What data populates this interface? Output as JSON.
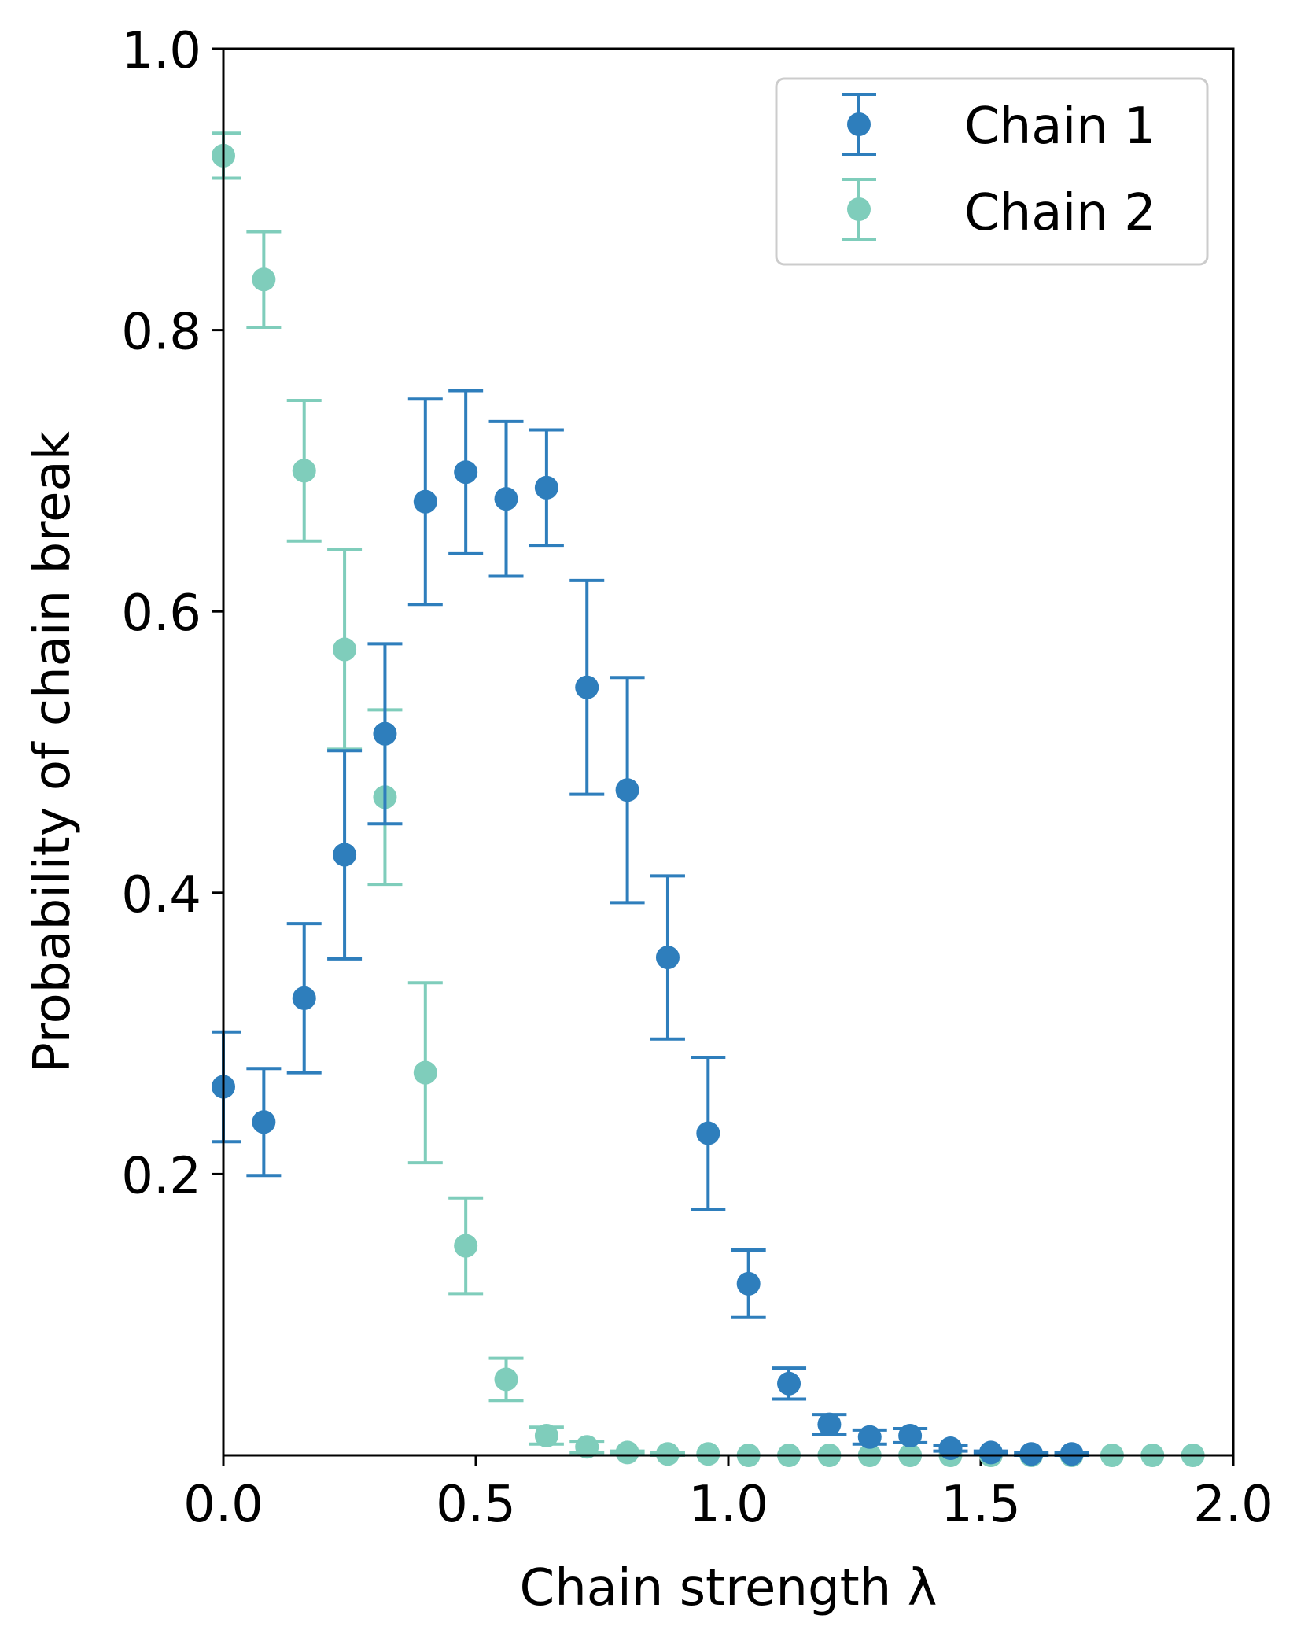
{
  "chart_data": {
    "type": "scatter",
    "subtype": "errorbar",
    "title": "",
    "xlabel": "Chain strength λ",
    "ylabel": "Probability of chain break",
    "xlim": [
      0.0,
      2.0
    ],
    "ylim": [
      0.0,
      1.0
    ],
    "xticks": [
      0.0,
      0.5,
      1.0,
      1.5,
      2.0
    ],
    "xtick_labels": [
      "0.0",
      "0.5",
      "1.0",
      "1.5",
      "2.0"
    ],
    "yticks": [
      0.2,
      0.4,
      0.6,
      0.8,
      1.0
    ],
    "ytick_labels": [
      "0.2",
      "0.4",
      "0.6",
      "0.8",
      "1.0"
    ],
    "grid": false,
    "legend_position": "top-right",
    "series": [
      {
        "name": "Chain 1",
        "color": "#2e7ebc",
        "x": [
          0.0,
          0.08,
          0.16,
          0.24,
          0.32,
          0.4,
          0.48,
          0.56,
          0.64,
          0.72,
          0.8,
          0.88,
          0.96,
          1.04,
          1.12,
          1.2,
          1.28,
          1.36,
          1.44,
          1.52,
          1.6,
          1.68
        ],
        "y": [
          0.262,
          0.237,
          0.325,
          0.427,
          0.513,
          0.678,
          0.699,
          0.68,
          0.688,
          0.546,
          0.473,
          0.354,
          0.229,
          0.122,
          0.051,
          0.022,
          0.013,
          0.014,
          0.005,
          0.002,
          0.001,
          0.001
        ],
        "yerr": [
          0.039,
          0.038,
          0.053,
          0.074,
          0.064,
          0.073,
          0.058,
          0.055,
          0.041,
          0.076,
          0.08,
          0.058,
          0.054,
          0.024,
          0.011,
          0.007,
          0.005,
          0.005,
          0.002,
          0.001,
          0.001,
          0.001
        ]
      },
      {
        "name": "Chain 2",
        "color": "#7fcdbb",
        "x": [
          0.0,
          0.08,
          0.16,
          0.24,
          0.32,
          0.4,
          0.48,
          0.56,
          0.64,
          0.72,
          0.8,
          0.88,
          0.96,
          1.04,
          1.12,
          1.2,
          1.28,
          1.36,
          1.44,
          1.52,
          1.6,
          1.68,
          1.76,
          1.84,
          1.92
        ],
        "y": [
          0.924,
          0.836,
          0.7,
          0.573,
          0.468,
          0.272,
          0.149,
          0.054,
          0.014,
          0.006,
          0.002,
          0.001,
          0.001,
          0.0,
          0.0,
          0.0,
          0.0,
          0.0,
          0.0,
          0.0,
          0.0,
          0.0,
          0.0,
          0.0,
          0.0
        ],
        "yerr": [
          0.016,
          0.034,
          0.05,
          0.071,
          0.062,
          0.064,
          0.034,
          0.015,
          0.006,
          0.004,
          0.001,
          0.001,
          0.0,
          0.0,
          0.0,
          0.0,
          0.0,
          0.0,
          0.0,
          0.0,
          0.0,
          0.0,
          0.0,
          0.0,
          0.0
        ]
      }
    ]
  }
}
